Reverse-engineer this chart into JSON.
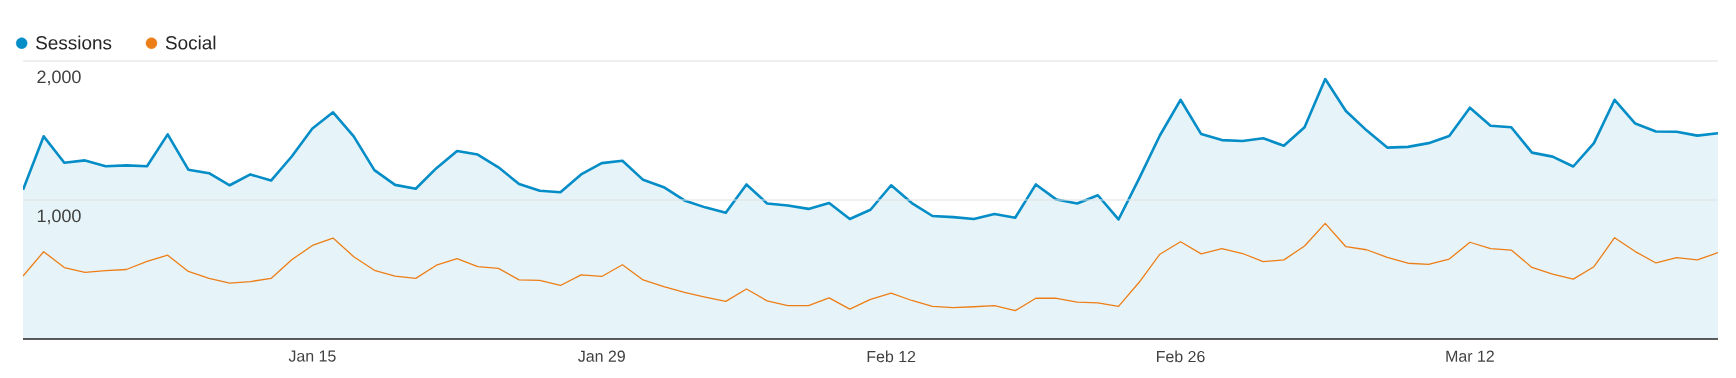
{
  "chart_data": {
    "type": "line",
    "categories": [
      null,
      null,
      null,
      null,
      null,
      null,
      null,
      null,
      null,
      null,
      null,
      null,
      null,
      null,
      "Jan 15",
      null,
      null,
      null,
      null,
      null,
      null,
      null,
      null,
      null,
      null,
      null,
      null,
      null,
      "Jan 29",
      null,
      null,
      null,
      null,
      null,
      null,
      null,
      null,
      null,
      null,
      null,
      null,
      null,
      "Feb 12",
      null,
      null,
      null,
      null,
      null,
      null,
      null,
      null,
      null,
      null,
      null,
      null,
      null,
      "Feb 26",
      null,
      null,
      null,
      null,
      null,
      null,
      null,
      null,
      null,
      null,
      null,
      null,
      null,
      "Mar 12",
      null,
      null,
      null,
      null,
      null,
      null,
      null,
      null,
      null,
      null,
      null,
      null
    ],
    "series": [
      {
        "name": "Sessions",
        "type": "area",
        "color": "#058dc7",
        "values": [
          1073,
          1458,
          1268,
          1285,
          1243,
          1249,
          1243,
          1472,
          1218,
          1193,
          1106,
          1184,
          1140,
          1313,
          1514,
          1631,
          1458,
          1215,
          1109,
          1081,
          1229,
          1352,
          1327,
          1235,
          1115,
          1067,
          1056,
          1184,
          1265,
          1282,
          1145,
          1092,
          997,
          947,
          908,
          1112,
          975,
          961,
          936,
          978,
          863,
          930,
          1106,
          978,
          885,
          877,
          863,
          899,
          872,
          1112,
          1003,
          975,
          1034,
          860,
          1156,
          1464,
          1721,
          1474,
          1431,
          1425,
          1444,
          1390,
          1523,
          1870,
          1640,
          1501,
          1377,
          1382,
          1409,
          1461,
          1664,
          1534,
          1523,
          1341,
          1312,
          1241,
          1409,
          1721,
          1550,
          1493,
          1491,
          1463,
          1480
        ]
      },
      {
        "name": "Social",
        "color": "#ed7e17",
        "values": [
          453,
          628,
          514,
          480,
          492,
          500,
          559,
          603,
          486,
          436,
          402,
          413,
          436,
          570,
          673,
          726,
          592,
          494,
          453,
          436,
          531,
          578,
          520,
          508,
          425,
          422,
          385,
          461,
          450,
          534,
          425,
          377,
          335,
          302,
          271,
          360,
          274,
          240,
          240,
          296,
          215,
          285,
          330,
          277,
          235,
          226,
          232,
          240,
          204,
          293,
          293,
          265,
          260,
          235,
          408,
          610,
          700,
          612,
          650,
          615,
          556,
          569,
          669,
          832,
          664,
          642,
          588,
          545,
          537,
          575,
          696,
          650,
          640,
          515,
          466,
          431,
          520,
          729,
          629,
          547,
          585,
          569,
          621
        ]
      }
    ],
    "ylim": [
      0,
      2000
    ],
    "yticks": [
      {
        "value": 1000,
        "label": "1,000"
      },
      {
        "value": 2000,
        "label": "2,000"
      }
    ],
    "grid": "y",
    "legend": "top left"
  }
}
